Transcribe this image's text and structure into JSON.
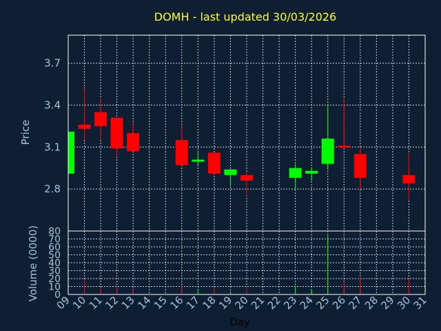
{
  "chart_data": {
    "type": "candlestick",
    "title": "DOMH - last updated 30/03/2026",
    "ylabel": "Price",
    "volume_label": "Volume (0000)",
    "xlabel": "Day",
    "price_ylim": [
      2.5,
      3.9
    ],
    "price_ticks": [
      "2.8",
      "3.1",
      "3.4",
      "3.7"
    ],
    "volume_ylim": [
      0,
      80
    ],
    "volume_ticks": [
      "0",
      "10",
      "20",
      "30",
      "40",
      "50",
      "60",
      "70",
      "80"
    ],
    "x_ticks": [
      "09",
      "10",
      "11",
      "12",
      "13",
      "14",
      "15",
      "16",
      "17",
      "18",
      "19",
      "20",
      "21",
      "22",
      "23",
      "24",
      "25",
      "26",
      "27",
      "28",
      "29",
      "30",
      "31"
    ],
    "grid": true,
    "colors": {
      "up": "#00ff00",
      "down": "#ff0000",
      "title": "#ffff33"
    },
    "candles": [
      {
        "day": "09",
        "open": 2.91,
        "high": 3.21,
        "low": 2.91,
        "close": 3.21,
        "volume": 0
      },
      {
        "day": "10",
        "open": 3.26,
        "high": 3.52,
        "low": 3.15,
        "close": 3.23,
        "volume": 17
      },
      {
        "day": "11",
        "open": 3.35,
        "high": 3.45,
        "low": 3.15,
        "close": 3.25,
        "volume": 8
      },
      {
        "day": "12",
        "open": 3.31,
        "high": 3.31,
        "low": 3.03,
        "close": 3.09,
        "volume": 11
      },
      {
        "day": "13",
        "open": 3.2,
        "high": 3.28,
        "low": 3.07,
        "close": 3.07,
        "volume": 6
      },
      {
        "day": "16",
        "open": 3.15,
        "high": 3.26,
        "low": 2.97,
        "close": 2.97,
        "volume": 12
      },
      {
        "day": "17",
        "open": 3.0,
        "high": 3.07,
        "low": 2.97,
        "close": 3.01,
        "volume": 5
      },
      {
        "day": "18",
        "open": 3.06,
        "high": 3.06,
        "low": 2.91,
        "close": 2.91,
        "volume": 9
      },
      {
        "day": "19",
        "open": 2.9,
        "high": 2.94,
        "low": 2.82,
        "close": 2.94,
        "volume": 4
      },
      {
        "day": "20",
        "open": 2.9,
        "high": 2.92,
        "low": 2.75,
        "close": 2.86,
        "volume": 10
      },
      {
        "day": "23",
        "open": 2.88,
        "high": 2.98,
        "low": 2.8,
        "close": 2.95,
        "volume": 11
      },
      {
        "day": "24",
        "open": 2.91,
        "high": 2.95,
        "low": 2.86,
        "close": 2.93,
        "volume": 7
      },
      {
        "day": "25",
        "open": 2.98,
        "high": 3.41,
        "low": 2.94,
        "close": 3.16,
        "volume": 74
      },
      {
        "day": "26",
        "open": 3.11,
        "high": 3.45,
        "low": 3.1,
        "close": 3.1,
        "volume": 16
      },
      {
        "day": "27",
        "open": 3.05,
        "high": 3.1,
        "low": 2.8,
        "close": 2.88,
        "volume": 21
      },
      {
        "day": "30",
        "open": 2.9,
        "high": 3.05,
        "low": 2.72,
        "close": 2.84,
        "volume": 20
      }
    ]
  }
}
